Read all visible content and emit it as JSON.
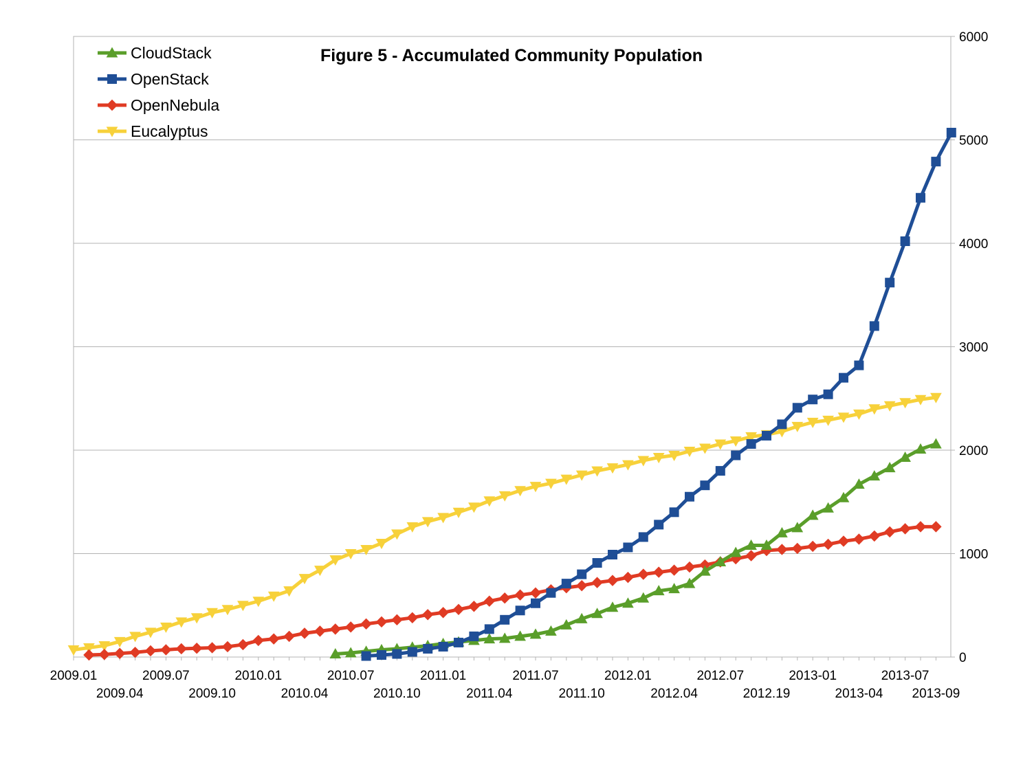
{
  "chart_data": {
    "type": "line",
    "title": "Figure 5 - Accumulated Community Population",
    "xlabel": "",
    "ylabel": "",
    "ylim": [
      0,
      6000
    ],
    "y_ticks": [
      "0",
      "1000",
      "2000",
      "3000",
      "4000",
      "5000",
      "6000"
    ],
    "y_axis_side": "right",
    "grid": "horizontal",
    "legend_position": "top-left",
    "x_ticks_upper": [
      {
        "index": 0,
        "label": "2009.01"
      },
      {
        "index": 6,
        "label": "2009.07"
      },
      {
        "index": 12,
        "label": "2010.01"
      },
      {
        "index": 18,
        "label": "2010.07"
      },
      {
        "index": 24,
        "label": "2011.01"
      },
      {
        "index": 30,
        "label": "2011.07"
      },
      {
        "index": 36,
        "label": "2012.01"
      },
      {
        "index": 42,
        "label": "2012.07"
      },
      {
        "index": 48,
        "label": "2013-01"
      },
      {
        "index": 54,
        "label": "2013-07"
      }
    ],
    "x_ticks_lower": [
      {
        "index": 3,
        "label": "2009.04"
      },
      {
        "index": 9,
        "label": "2009.10"
      },
      {
        "index": 15,
        "label": "2010.04"
      },
      {
        "index": 21,
        "label": "2010.10"
      },
      {
        "index": 27,
        "label": "2011.04"
      },
      {
        "index": 33,
        "label": "2011.10"
      },
      {
        "index": 39,
        "label": "2012.04"
      },
      {
        "index": 45,
        "label": "2012.19"
      },
      {
        "index": 51,
        "label": "2013-04"
      },
      {
        "index": 56,
        "label": "2013-09"
      }
    ],
    "series": [
      {
        "name": "CloudStack",
        "color": "#5a9e2a",
        "marker": "triangle-up",
        "start_index": 17,
        "values": [
          30,
          40,
          55,
          70,
          80,
          95,
          110,
          130,
          145,
          160,
          175,
          180,
          200,
          220,
          250,
          310,
          370,
          420,
          480,
          520,
          570,
          640,
          660,
          710,
          830,
          920,
          1010,
          1080,
          1080,
          1200,
          1250,
          1370,
          1440,
          1540,
          1670,
          1750,
          1830,
          1930,
          2010,
          2060
        ]
      },
      {
        "name": "OpenStack",
        "color": "#1f4e96",
        "marker": "square",
        "start_index": 19,
        "values": [
          10,
          20,
          30,
          50,
          80,
          100,
          140,
          200,
          270,
          360,
          450,
          520,
          620,
          710,
          800,
          910,
          990,
          1060,
          1160,
          1280,
          1400,
          1550,
          1660,
          1800,
          1950,
          2060,
          2140,
          2250,
          2410,
          2490,
          2540,
          2700,
          2820,
          3200,
          3620,
          4020,
          4440,
          4790,
          5070
        ]
      },
      {
        "name": "OpenNebula",
        "color": "#e03b24",
        "marker": "diamond",
        "start_index": 1,
        "values": [
          20,
          25,
          35,
          45,
          60,
          70,
          80,
          85,
          90,
          100,
          120,
          160,
          175,
          200,
          230,
          250,
          270,
          290,
          320,
          340,
          360,
          380,
          410,
          430,
          460,
          490,
          540,
          570,
          600,
          620,
          650,
          670,
          690,
          720,
          740,
          770,
          800,
          820,
          840,
          870,
          890,
          920,
          950,
          980,
          1030,
          1040,
          1050,
          1070,
          1090,
          1120,
          1140,
          1170,
          1210,
          1240,
          1260,
          1260
        ]
      },
      {
        "name": "Eucalyptus",
        "color": "#f7d13a",
        "marker": "triangle-down",
        "start_index": 0,
        "values": [
          70,
          90,
          110,
          150,
          200,
          240,
          290,
          340,
          380,
          430,
          460,
          500,
          540,
          590,
          640,
          760,
          840,
          940,
          1000,
          1040,
          1100,
          1190,
          1260,
          1310,
          1350,
          1400,
          1450,
          1510,
          1560,
          1610,
          1650,
          1680,
          1720,
          1760,
          1800,
          1830,
          1860,
          1900,
          1930,
          1950,
          1990,
          2020,
          2060,
          2090,
          2130,
          2150,
          2180,
          2230,
          2270,
          2290,
          2320,
          2350,
          2400,
          2430,
          2460,
          2490,
          2510
        ]
      }
    ]
  }
}
